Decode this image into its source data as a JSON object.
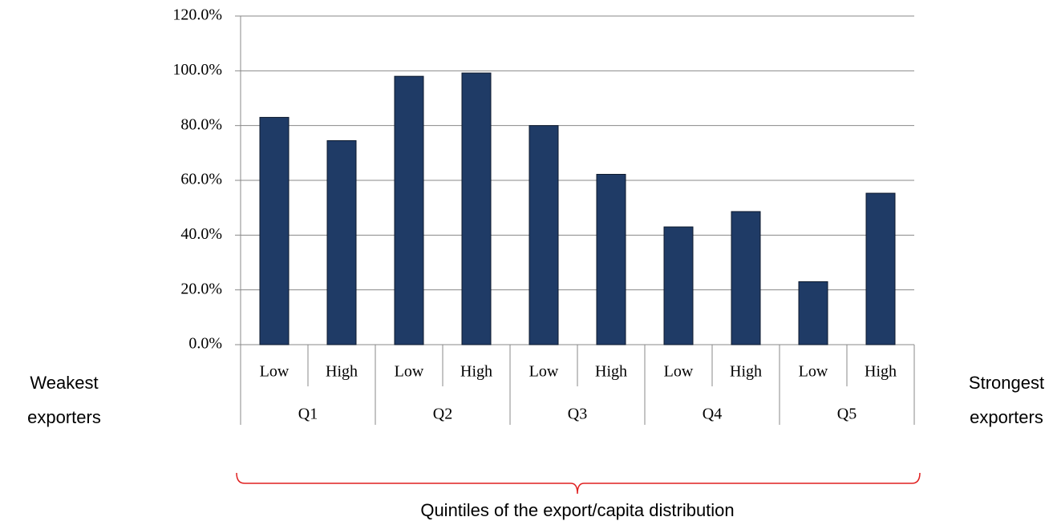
{
  "chart_data": {
    "type": "bar",
    "categories": [
      "Low",
      "High",
      "Low",
      "High",
      "Low",
      "High",
      "Low",
      "High",
      "Low",
      "High"
    ],
    "groups": [
      "Q1",
      "Q2",
      "Q3",
      "Q4",
      "Q5"
    ],
    "values": [
      83,
      74.5,
      98,
      99.2,
      80,
      62.2,
      43,
      48.6,
      23,
      55.3
    ],
    "color": "#1f3b66",
    "ylim": [
      0,
      120
    ],
    "yticks": [
      {
        "value": 0,
        "label": "0.0%"
      },
      {
        "value": 20,
        "label": "20.0%"
      },
      {
        "value": 40,
        "label": "40.0%"
      },
      {
        "value": 60,
        "label": "60.0%"
      },
      {
        "value": 80,
        "label": "80.0%"
      },
      {
        "value": 100,
        "label": "100.0%"
      },
      {
        "value": 120,
        "label": "120.0%"
      }
    ],
    "grid": true,
    "left_annotation": "Weakest exporters",
    "right_annotation": "Strongest exporters",
    "bracket_label": "Quintiles of the export/capita distribution"
  }
}
